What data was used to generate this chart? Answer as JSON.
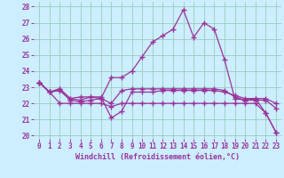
{
  "xlabel": "Windchill (Refroidissement éolien,°C)",
  "xlim": [
    -0.5,
    23.5
  ],
  "ylim": [
    19.8,
    28.3
  ],
  "yticks": [
    20,
    21,
    22,
    23,
    24,
    25,
    26,
    27,
    28
  ],
  "xticks": [
    0,
    1,
    2,
    3,
    4,
    5,
    6,
    7,
    8,
    9,
    10,
    11,
    12,
    13,
    14,
    15,
    16,
    17,
    18,
    19,
    20,
    21,
    22,
    23
  ],
  "background_color": "#cceeff",
  "grid_color": "#99ccbb",
  "line_color": "#993399",
  "series1": [
    23.3,
    22.7,
    22.9,
    22.3,
    22.2,
    22.4,
    22.4,
    21.1,
    21.5,
    22.7,
    22.7,
    22.7,
    22.8,
    22.8,
    22.8,
    22.8,
    22.8,
    22.8,
    22.7,
    22.5,
    22.3,
    22.3,
    22.3,
    22.0
  ],
  "series2": [
    23.3,
    22.7,
    22.0,
    22.0,
    22.0,
    22.0,
    22.0,
    21.8,
    22.0,
    22.0,
    22.0,
    22.0,
    22.0,
    22.0,
    22.0,
    22.0,
    22.0,
    22.0,
    22.0,
    22.0,
    22.0,
    22.0,
    21.4,
    20.2
  ],
  "series3": [
    23.3,
    22.7,
    22.8,
    22.2,
    22.1,
    22.2,
    22.3,
    22.0,
    22.8,
    22.9,
    22.9,
    22.9,
    22.9,
    22.9,
    22.9,
    22.9,
    22.9,
    22.9,
    22.8,
    22.4,
    22.2,
    22.2,
    22.2,
    21.7
  ],
  "series4": [
    23.3,
    22.7,
    22.9,
    22.3,
    22.4,
    22.4,
    22.3,
    23.6,
    23.6,
    24.0,
    24.9,
    25.8,
    26.2,
    26.6,
    27.8,
    26.1,
    27.0,
    26.6,
    24.7,
    22.3,
    22.2,
    22.3,
    21.4,
    20.2
  ]
}
